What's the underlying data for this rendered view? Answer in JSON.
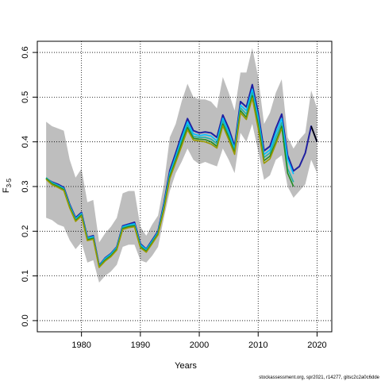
{
  "chart_data": {
    "type": "line",
    "xlabel": "Years",
    "ylabel_main": "F",
    "ylabel_sub": "3-5",
    "xlim": [
      1972.5,
      2022.5
    ],
    "ylim": [
      -0.025,
      0.625
    ],
    "xticks": [
      1980,
      1990,
      2000,
      2010,
      2020
    ],
    "yticks": [
      0.0,
      0.1,
      0.2,
      0.3,
      0.4,
      0.5,
      0.6
    ],
    "ytick_labels": [
      "0.0",
      "0.1",
      "0.2",
      "0.3",
      "0.4",
      "0.5",
      "0.6"
    ],
    "grid": true,
    "band": {
      "color": "#bebebe",
      "x": [
        1974,
        1975,
        1976,
        1977,
        1978,
        1979,
        1980,
        1981,
        1982,
        1983,
        1984,
        1985,
        1986,
        1987,
        1988,
        1989,
        1990,
        1991,
        1992,
        1993,
        1994,
        1995,
        1996,
        1997,
        1998,
        1999,
        2000,
        2001,
        2002,
        2003,
        2004,
        2005,
        2006,
        2007,
        2008,
        2009,
        2010,
        2011,
        2012,
        2013,
        2014,
        2015,
        2016,
        2017,
        2018,
        2019,
        2020
      ],
      "upper": [
        0.445,
        0.435,
        0.43,
        0.425,
        0.36,
        0.32,
        0.34,
        0.265,
        0.27,
        0.175,
        0.195,
        0.21,
        0.23,
        0.285,
        0.29,
        0.29,
        0.21,
        0.19,
        0.215,
        0.235,
        0.305,
        0.41,
        0.44,
        0.49,
        0.53,
        0.5,
        0.495,
        0.495,
        0.49,
        0.475,
        0.545,
        0.51,
        0.47,
        0.555,
        0.555,
        0.61,
        0.545,
        0.44,
        0.465,
        0.51,
        0.54,
        0.41,
        0.385,
        0.405,
        0.42,
        0.515,
        0.475
      ],
      "lower": [
        0.23,
        0.225,
        0.215,
        0.21,
        0.18,
        0.16,
        0.175,
        0.13,
        0.135,
        0.085,
        0.1,
        0.11,
        0.125,
        0.165,
        0.17,
        0.17,
        0.135,
        0.13,
        0.145,
        0.165,
        0.23,
        0.29,
        0.33,
        0.355,
        0.385,
        0.36,
        0.35,
        0.355,
        0.35,
        0.345,
        0.385,
        0.36,
        0.33,
        0.42,
        0.4,
        0.44,
        0.38,
        0.315,
        0.325,
        0.36,
        0.37,
        0.3,
        0.275,
        0.29,
        0.305,
        0.36,
        0.33
      ]
    },
    "series": [
      {
        "color": "#2020a0",
        "x": [
          1974,
          1975,
          1976,
          1977,
          1978,
          1979,
          1980,
          1981,
          1982,
          1983,
          1984,
          1985,
          1986,
          1987,
          1988,
          1989,
          1990,
          1991,
          1992,
          1993,
          1994,
          1995,
          1996,
          1997,
          1998,
          1999,
          2000,
          2001,
          2002,
          2003,
          2004,
          2005,
          2006,
          2007,
          2008,
          2009,
          2010,
          2011,
          2012,
          2013,
          2014,
          2015,
          2016,
          2017,
          2018,
          2019,
          2020
        ],
        "y": [
          0.318,
          0.31,
          0.305,
          0.298,
          0.26,
          0.23,
          0.242,
          0.186,
          0.19,
          0.123,
          0.14,
          0.15,
          0.165,
          0.212,
          0.216,
          0.22,
          0.172,
          0.16,
          0.18,
          0.2,
          0.262,
          0.336,
          0.375,
          0.415,
          0.452,
          0.425,
          0.42,
          0.422,
          0.42,
          0.41,
          0.46,
          0.43,
          0.39,
          0.49,
          0.478,
          0.528,
          0.465,
          0.38,
          0.39,
          0.43,
          0.462,
          0.37,
          0.335,
          0.345,
          0.375,
          0.435,
          0.4
        ]
      },
      {
        "color": "#00bfff",
        "x": [
          1974,
          1975,
          1976,
          1977,
          1978,
          1979,
          1980,
          1981,
          1982,
          1983,
          1984,
          1985,
          1986,
          1987,
          1988,
          1989,
          1990,
          1991,
          1992,
          1993,
          1994,
          1995,
          1996,
          1997,
          1998,
          1999,
          2000,
          2001,
          2002,
          2003,
          2004,
          2005,
          2006,
          2007,
          2008,
          2009,
          2010,
          2011,
          2012,
          2013,
          2014,
          2015,
          2016
        ],
        "y": [
          0.319,
          0.309,
          0.303,
          0.296,
          0.258,
          0.228,
          0.24,
          0.185,
          0.188,
          0.122,
          0.139,
          0.149,
          0.164,
          0.21,
          0.214,
          0.217,
          0.17,
          0.159,
          0.178,
          0.198,
          0.258,
          0.33,
          0.368,
          0.408,
          0.445,
          0.418,
          0.414,
          0.416,
          0.413,
          0.402,
          0.453,
          0.422,
          0.385,
          0.482,
          0.47,
          0.518,
          0.455,
          0.372,
          0.382,
          0.42,
          0.452,
          0.362,
          0.328
        ]
      },
      {
        "color": "#20b2aa",
        "x": [
          1974,
          1975,
          1976,
          1977,
          1978,
          1979,
          1980,
          1981,
          1982,
          1983,
          1984,
          1985,
          1986,
          1987,
          1988,
          1989,
          1990,
          1991,
          1992,
          1993,
          1994,
          1995,
          1996,
          1997,
          1998,
          1999,
          2000,
          2001,
          2002,
          2003,
          2004,
          2005,
          2006,
          2007,
          2008,
          2009,
          2010,
          2011,
          2012,
          2013,
          2014,
          2015,
          2016
        ],
        "y": [
          0.32,
          0.308,
          0.302,
          0.295,
          0.256,
          0.226,
          0.238,
          0.183,
          0.186,
          0.121,
          0.137,
          0.147,
          0.162,
          0.208,
          0.212,
          0.214,
          0.167,
          0.157,
          0.176,
          0.196,
          0.254,
          0.326,
          0.363,
          0.402,
          0.438,
          0.412,
          0.41,
          0.41,
          0.406,
          0.396,
          0.447,
          0.416,
          0.38,
          0.476,
          0.462,
          0.51,
          0.446,
          0.365,
          0.375,
          0.41,
          0.443,
          0.34,
          0.31
        ]
      },
      {
        "color": "#228b22",
        "x": [
          1974,
          1975,
          1976,
          1977,
          1978,
          1979,
          1980,
          1981,
          1982,
          1983,
          1984,
          1985,
          1986,
          1987,
          1988,
          1989,
          1990,
          1991,
          1992,
          1993,
          1994,
          1995,
          1996,
          1997,
          1998,
          1999,
          2000,
          2001,
          2002,
          2003,
          2004,
          2005,
          2006,
          2007,
          2008,
          2009,
          2010,
          2011,
          2012,
          2013,
          2014,
          2015,
          2016
        ],
        "y": [
          0.318,
          0.306,
          0.3,
          0.293,
          0.254,
          0.224,
          0.236,
          0.181,
          0.184,
          0.12,
          0.135,
          0.145,
          0.16,
          0.206,
          0.21,
          0.212,
          0.165,
          0.155,
          0.174,
          0.194,
          0.25,
          0.322,
          0.358,
          0.396,
          0.432,
          0.408,
          0.406,
          0.405,
          0.4,
          0.39,
          0.44,
          0.41,
          0.376,
          0.47,
          0.455,
          0.503,
          0.438,
          0.358,
          0.368,
          0.4,
          0.435,
          0.33,
          0.3
        ]
      },
      {
        "color": "#9a9a00",
        "x": [
          1974,
          1975,
          1976,
          1977,
          1978,
          1979,
          1980,
          1981,
          1982,
          1983,
          1984,
          1985,
          1986,
          1987,
          1988,
          1989,
          1990,
          1991,
          1992,
          1993,
          1994,
          1995,
          1996,
          1997,
          1998,
          1999,
          2000,
          2001,
          2002,
          2003,
          2004,
          2005,
          2006,
          2007,
          2008,
          2009,
          2010,
          2011,
          2012,
          2013,
          2014
        ],
        "y": [
          0.316,
          0.304,
          0.298,
          0.291,
          0.252,
          0.222,
          0.234,
          0.179,
          0.182,
          0.119,
          0.133,
          0.143,
          0.158,
          0.204,
          0.208,
          0.21,
          0.163,
          0.153,
          0.172,
          0.192,
          0.247,
          0.318,
          0.354,
          0.39,
          0.427,
          0.404,
          0.402,
          0.4,
          0.395,
          0.386,
          0.436,
          0.405,
          0.372,
          0.465,
          0.45,
          0.498,
          0.43,
          0.352,
          0.362,
          0.395,
          0.43
        ]
      },
      {
        "color": "#000000",
        "x": [
          2019,
          2020
        ],
        "y": [
          0.435,
          0.4
        ]
      }
    ]
  },
  "footer_text": "stockassessment.org, spr2021, r14277, gitsc2c2a0c6dde"
}
